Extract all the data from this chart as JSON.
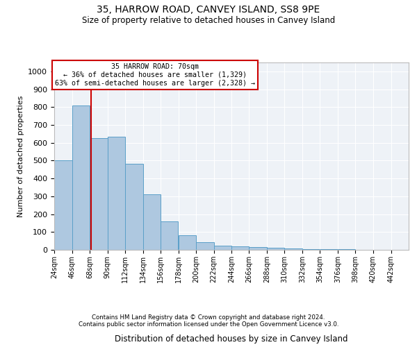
{
  "title1": "35, HARROW ROAD, CANVEY ISLAND, SS8 9PE",
  "title2": "Size of property relative to detached houses in Canvey Island",
  "xlabel": "Distribution of detached houses by size in Canvey Island",
  "ylabel": "Number of detached properties",
  "bin_edges": [
    24,
    46,
    68,
    90,
    112,
    134,
    156,
    178,
    200,
    222,
    244,
    266,
    288,
    310,
    332,
    354,
    376,
    398,
    420,
    442,
    464
  ],
  "bar_heights": [
    500,
    810,
    625,
    635,
    482,
    310,
    160,
    80,
    42,
    22,
    18,
    14,
    10,
    7,
    4,
    2,
    2,
    1,
    1,
    0
  ],
  "bar_color": "#aec8e0",
  "bar_edge_color": "#5a9fc8",
  "property_size": 70,
  "annotation_line1": "35 HARROW ROAD: 70sqm",
  "annotation_line2": "← 36% of detached houses are smaller (1,329)",
  "annotation_line3": "63% of semi-detached houses are larger (2,328) →",
  "red_line_color": "#cc0000",
  "annotation_box_color": "#ffffff",
  "annotation_box_edge": "#cc0000",
  "ylim": [
    0,
    1050
  ],
  "yticks": [
    0,
    100,
    200,
    300,
    400,
    500,
    600,
    700,
    800,
    900,
    1000
  ],
  "footer1": "Contains HM Land Registry data © Crown copyright and database right 2024.",
  "footer2": "Contains public sector information licensed under the Open Government Licence v3.0.",
  "bg_color": "#eef2f7",
  "grid_color": "#ffffff"
}
